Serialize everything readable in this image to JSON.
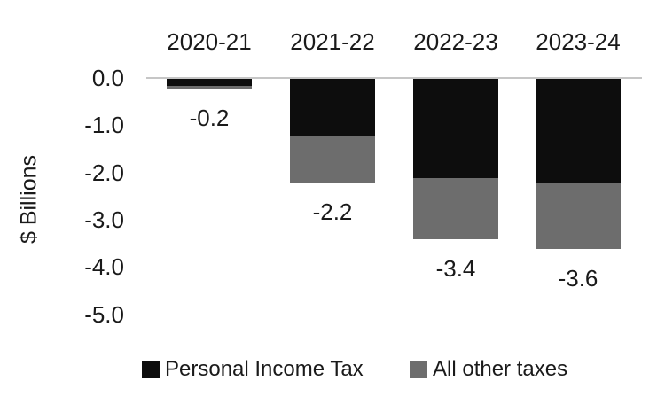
{
  "chart_data": {
    "type": "bar",
    "subtype": "stacked-column-negative",
    "title": "",
    "ylabel": "$ Billions",
    "xlabel": "",
    "categories": [
      "2020-21",
      "2021-22",
      "2022-23",
      "2023-24"
    ],
    "series": [
      {
        "name": "Personal Income Tax",
        "color": "#0d0d0d",
        "values": [
          -0.15,
          -1.2,
          -2.1,
          -2.2
        ]
      },
      {
        "name": "All other taxes",
        "color": "#6d6d6d",
        "values": [
          -0.05,
          -1.0,
          -1.3,
          -1.4
        ]
      }
    ],
    "totals": [
      -0.2,
      -2.2,
      -3.4,
      -3.6
    ],
    "total_labels": [
      "-0.2",
      "-2.2",
      "-3.4",
      "-3.6"
    ],
    "yticks": [
      "0.0",
      "-1.0",
      "-2.0",
      "-3.0",
      "-4.0",
      "-5.0"
    ],
    "ytick_values": [
      0,
      -1,
      -2,
      -3,
      -4,
      -5
    ],
    "ylim": [
      -5.0,
      0.0
    ],
    "grid": "zero-line-only",
    "zero_line_color": "#c6c6c6",
    "text_color": "#1a1a1a",
    "background": "#ffffff",
    "legend_position": "bottom",
    "category_labels_position": "top"
  }
}
